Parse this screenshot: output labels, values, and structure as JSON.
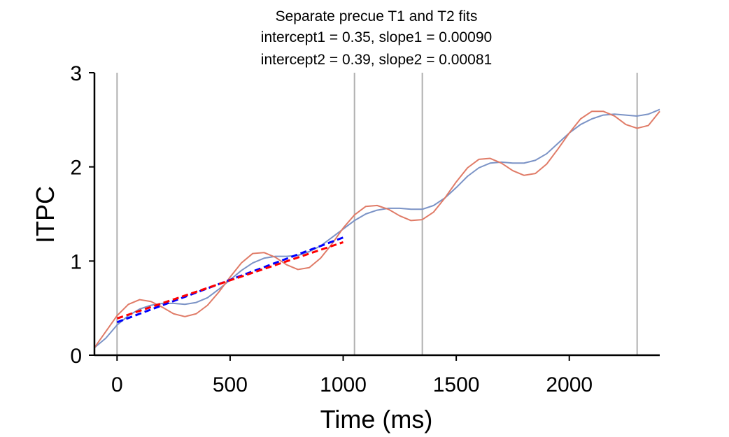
{
  "chart_data": {
    "type": "line",
    "title": [
      "Separate precue T1 and T2 fits",
      "intercept1 = 0.35, slope1 = 0.00090",
      "intercept2 = 0.39, slope2 = 0.00081"
    ],
    "xlabel": "Time (ms)",
    "ylabel": "ITPC",
    "xlim": [
      -100,
      2400
    ],
    "ylim": [
      0,
      3
    ],
    "x_ticks": [
      0,
      500,
      1000,
      1500,
      2000
    ],
    "y_ticks": [
      0,
      1,
      2,
      3
    ],
    "x_tick_labels": [
      "0",
      "500",
      "1000",
      "1500",
      "2000"
    ],
    "y_tick_labels": [
      "0",
      "1",
      "2",
      "3"
    ],
    "grid": false,
    "legend": "none",
    "vlines": [
      0,
      1050,
      1350,
      2300
    ],
    "vline_color": "#b0b0b0",
    "series": [
      {
        "color": "#7b93c6",
        "style": "solid",
        "points": [
          [
            -100,
            0.08
          ],
          [
            -50,
            0.18
          ],
          [
            0,
            0.32
          ],
          [
            50,
            0.42
          ],
          [
            100,
            0.49
          ],
          [
            150,
            0.53
          ],
          [
            200,
            0.55
          ],
          [
            250,
            0.55
          ],
          [
            300,
            0.54
          ],
          [
            350,
            0.56
          ],
          [
            400,
            0.61
          ],
          [
            450,
            0.7
          ],
          [
            500,
            0.8
          ],
          [
            550,
            0.9
          ],
          [
            600,
            0.98
          ],
          [
            650,
            1.03
          ],
          [
            700,
            1.05
          ],
          [
            750,
            1.05
          ],
          [
            800,
            1.06
          ],
          [
            850,
            1.1
          ],
          [
            900,
            1.16
          ],
          [
            950,
            1.25
          ],
          [
            1000,
            1.34
          ],
          [
            1050,
            1.43
          ],
          [
            1100,
            1.5
          ],
          [
            1150,
            1.54
          ],
          [
            1200,
            1.56
          ],
          [
            1250,
            1.56
          ],
          [
            1300,
            1.55
          ],
          [
            1350,
            1.55
          ],
          [
            1400,
            1.59
          ],
          [
            1450,
            1.67
          ],
          [
            1500,
            1.78
          ],
          [
            1550,
            1.9
          ],
          [
            1600,
            1.99
          ],
          [
            1650,
            2.04
          ],
          [
            1700,
            2.05
          ],
          [
            1750,
            2.04
          ],
          [
            1800,
            2.04
          ],
          [
            1850,
            2.07
          ],
          [
            1900,
            2.14
          ],
          [
            1950,
            2.25
          ],
          [
            2000,
            2.36
          ],
          [
            2050,
            2.45
          ],
          [
            2100,
            2.51
          ],
          [
            2150,
            2.55
          ],
          [
            2200,
            2.56
          ],
          [
            2250,
            2.55
          ],
          [
            2300,
            2.54
          ],
          [
            2350,
            2.56
          ],
          [
            2400,
            2.61
          ]
        ]
      },
      {
        "color": "#e07b67",
        "style": "solid",
        "points": [
          [
            -100,
            0.08
          ],
          [
            -50,
            0.25
          ],
          [
            0,
            0.42
          ],
          [
            50,
            0.54
          ],
          [
            100,
            0.59
          ],
          [
            150,
            0.57
          ],
          [
            200,
            0.51
          ],
          [
            250,
            0.44
          ],
          [
            300,
            0.41
          ],
          [
            350,
            0.44
          ],
          [
            400,
            0.53
          ],
          [
            450,
            0.67
          ],
          [
            500,
            0.83
          ],
          [
            550,
            0.98
          ],
          [
            600,
            1.08
          ],
          [
            650,
            1.09
          ],
          [
            700,
            1.04
          ],
          [
            750,
            0.96
          ],
          [
            800,
            0.91
          ],
          [
            850,
            0.93
          ],
          [
            900,
            1.03
          ],
          [
            950,
            1.18
          ],
          [
            1000,
            1.35
          ],
          [
            1050,
            1.49
          ],
          [
            1100,
            1.58
          ],
          [
            1150,
            1.59
          ],
          [
            1200,
            1.55
          ],
          [
            1250,
            1.48
          ],
          [
            1300,
            1.43
          ],
          [
            1350,
            1.44
          ],
          [
            1400,
            1.52
          ],
          [
            1450,
            1.67
          ],
          [
            1500,
            1.84
          ],
          [
            1550,
            1.99
          ],
          [
            1600,
            2.08
          ],
          [
            1650,
            2.09
          ],
          [
            1700,
            2.04
          ],
          [
            1750,
            1.96
          ],
          [
            1800,
            1.91
          ],
          [
            1850,
            1.93
          ],
          [
            1900,
            2.03
          ],
          [
            1950,
            2.19
          ],
          [
            2000,
            2.36
          ],
          [
            2050,
            2.51
          ],
          [
            2100,
            2.59
          ],
          [
            2150,
            2.59
          ],
          [
            2200,
            2.54
          ],
          [
            2250,
            2.45
          ],
          [
            2300,
            2.41
          ],
          [
            2350,
            2.44
          ],
          [
            2400,
            2.59
          ]
        ]
      },
      {
        "color": "#0000ff",
        "style": "dashed",
        "points": [
          [
            0,
            0.35
          ],
          [
            1000,
            1.25
          ]
        ]
      },
      {
        "color": "#ff0000",
        "style": "dashed",
        "points": [
          [
            0,
            0.39
          ],
          [
            1000,
            1.2
          ]
        ]
      }
    ]
  }
}
